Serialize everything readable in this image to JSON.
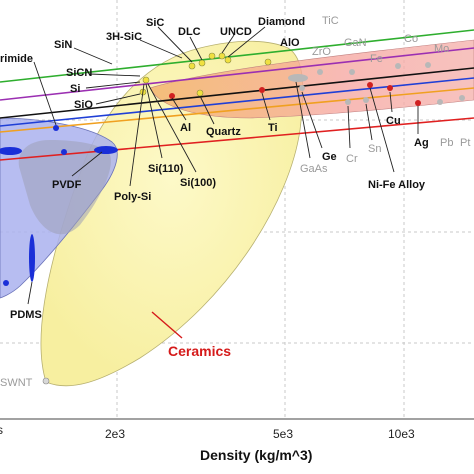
{
  "chart_data": {
    "type": "scatter",
    "xlabel": "Density (kg/m^3)",
    "x_scale": "log",
    "x_ticks": [
      "2e3",
      "5e3",
      "10e3"
    ],
    "colors": {
      "ceramics_region": "#fbf6b0",
      "polymers_region": "#aab2ee",
      "metals_region": "#f6a9a3",
      "ceramics_annotation": "#d51a1a",
      "guide_green": "#2eae2e",
      "guide_purple": "#9b2fb2",
      "guide_black": "#111111",
      "guide_blue": "#1f3fd6",
      "guide_orange": "#f0a020",
      "guide_red": "#e02020"
    },
    "regions": [
      {
        "name": "Ceramics"
      }
    ],
    "labels": [
      "rimide",
      "SiN",
      "3H-SiC",
      "SiC",
      "DLC",
      "UNCD",
      "Diamond",
      "TiC",
      "SiCN",
      "AlO",
      "ZrO",
      "GaN",
      "Co",
      "Fe",
      "Mo",
      "Si",
      "SiO",
      "Al",
      "Quartz",
      "Ti",
      "Ge",
      "GaAs",
      "Cr",
      "Sn",
      "Cu",
      "Ag",
      "Pb",
      "Pt",
      "Si(110)",
      "Si(100)",
      "Poly-Si",
      "PVDF",
      "PDMS",
      "Ni-Fe Alloy",
      "SWNT",
      "Ceramics"
    ]
  }
}
